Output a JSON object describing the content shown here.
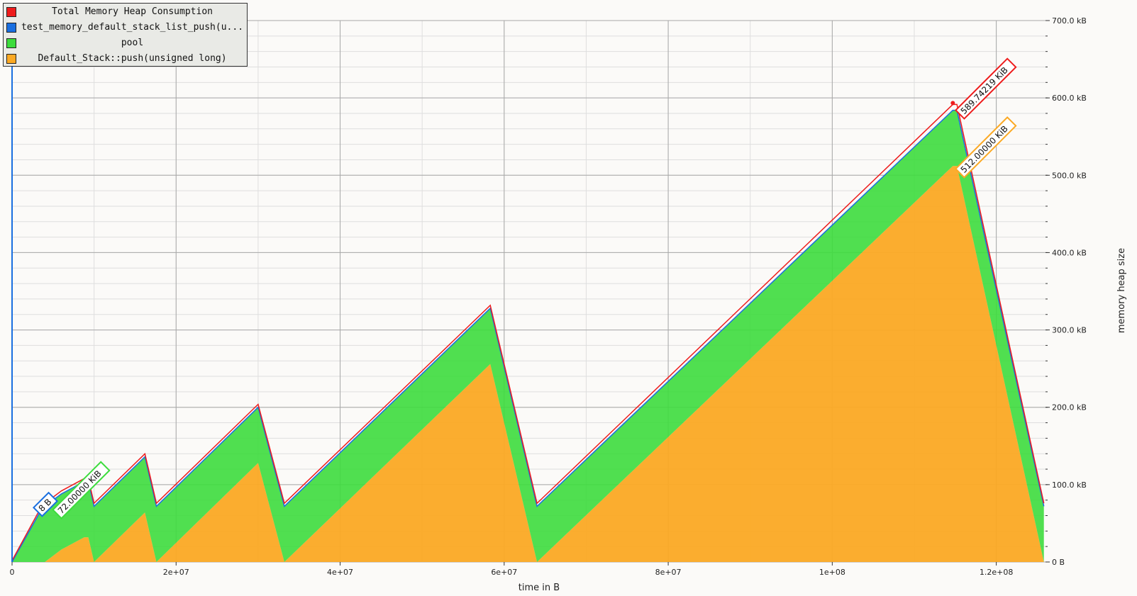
{
  "chart_data": {
    "type": "area",
    "stacked": true,
    "xlabel": "time in B",
    "ylabel": "memory heap size",
    "xlim": [
      0,
      126000000
    ],
    "ylim": [
      0,
      700
    ],
    "x_ticks": [
      0,
      20000000,
      40000000,
      60000000,
      80000000,
      100000000,
      120000000
    ],
    "x_tick_labels": [
      "0",
      "2e+07",
      "4e+07",
      "6e+07",
      "8e+07",
      "1e+08",
      "1.2e+08"
    ],
    "y_ticks": [
      0,
      100,
      200,
      300,
      400,
      500,
      600,
      700
    ],
    "y_tick_labels": [
      "0 B",
      "100.0 kB",
      "200.0 kB",
      "300.0 kB",
      "400.0 kB",
      "500.0 kB",
      "600.0 kB",
      "700.0 kB"
    ],
    "grid": true,
    "legend_position": "top-left",
    "x": [
      0,
      3800000,
      4000000,
      6000000,
      8800000,
      9300000,
      10000000,
      16200000,
      17600000,
      30000000,
      33200000,
      58300000,
      64000000,
      114700000,
      115200000,
      125800000
    ],
    "series": [
      {
        "name": "test_memory_default_stack_list_push(u...",
        "color": "#1a6fe0",
        "values": [
          0,
          0,
          0,
          0,
          0,
          0,
          0,
          0,
          0,
          0,
          0,
          0,
          0,
          0,
          0,
          0
        ]
      },
      {
        "name": "pool",
        "color": "#3ddc3d",
        "values": [
          0,
          72,
          72,
          72,
          72,
          72,
          72,
          72,
          72,
          72,
          72,
          72,
          72,
          72,
          72,
          72
        ]
      },
      {
        "name": "Default_Stack::push(unsigned long)",
        "color": "#fba924",
        "values": [
          0,
          0,
          0,
          16,
          32,
          32,
          0,
          64,
          0,
          128,
          0,
          256,
          0,
          512,
          512,
          0
        ]
      }
    ],
    "total": {
      "name": "Total Memory Heap Consumption",
      "color": "#ee1c1c",
      "values": [
        0,
        74,
        74,
        90,
        106,
        106,
        74,
        138,
        74,
        202,
        74,
        330,
        74,
        589.7,
        589.7,
        74
      ]
    },
    "annotations": [
      {
        "text": "589.74219 KiB",
        "color": "#ee1c1c",
        "x": 114700000,
        "y": 589.7
      },
      {
        "text": "512.00000 KiB",
        "color": "#fba924",
        "x": 114700000,
        "y": 512
      },
      {
        "text": "72.00000 KiB",
        "color": "#3ddc3d",
        "x": 9300000,
        "y": 106
      },
      {
        "text": "8 B",
        "color": "#1a6fe0",
        "x": 4000000,
        "y": 74
      }
    ]
  },
  "legend": {
    "items": [
      {
        "label": "Total Memory Heap Consumption",
        "color": "#ee1c1c"
      },
      {
        "label": "test_memory_default_stack_list_push(u...",
        "color": "#1a6fe0"
      },
      {
        "label": "pool",
        "color": "#3ddc3d"
      },
      {
        "label": "Default_Stack::push(unsigned long)",
        "color": "#fba924"
      }
    ]
  }
}
